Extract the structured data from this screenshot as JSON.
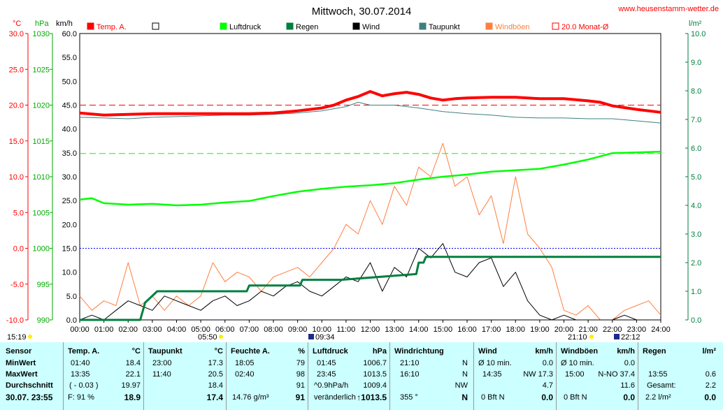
{
  "header": {
    "title": "Mittwoch, 30.07.2014",
    "site": "www.heusenstamm-wetter.de",
    "unit_left1": "°C",
    "unit_left2": "hPa",
    "unit_left3": "km/h",
    "unit_right": "l/m²"
  },
  "legend": [
    {
      "label": "Temp. A.",
      "color": "#ff0000",
      "filled": true
    },
    {
      "label": "",
      "color": "#000000",
      "filled": false
    },
    {
      "label": "Luftdruck",
      "color": "#00ff00",
      "filled": true
    },
    {
      "label": "Regen",
      "color": "#007f3f",
      "filled": true
    },
    {
      "label": "Wind",
      "color": "#000000",
      "filled": true
    },
    {
      "label": "Taupunkt",
      "color": "#3f7f7f",
      "filled": true
    },
    {
      "label": "Windböen",
      "color": "#ff7f3f",
      "filled": true
    },
    {
      "label": "20.0 Monat-Ø",
      "color": "#ff0000",
      "filled": false
    }
  ],
  "chart_data": {
    "type": "line",
    "x_ticks": [
      "00:00",
      "01:00",
      "02:00",
      "03:00",
      "04:00",
      "05:00",
      "06:00",
      "07:00",
      "08:00",
      "09:00",
      "10:00",
      "11:00",
      "12:00",
      "13:00",
      "14:00",
      "15:00",
      "16:00",
      "17:00",
      "18:00",
      "19:00",
      "20:00",
      "21:00",
      "22:00",
      "23:00",
      "24:00"
    ],
    "axis_temp": {
      "label": "°C",
      "ticks": [
        "30.0",
        "25.0",
        "20.0",
        "15.0",
        "10.0",
        "5.0",
        "0.0",
        "-5.0",
        "-10.0"
      ],
      "range": [
        -10,
        30
      ]
    },
    "axis_pressure": {
      "label": "hPa",
      "ticks": [
        "1030",
        "1025",
        "1020",
        "1015",
        "1010",
        "1005",
        "1000",
        "995",
        "990"
      ],
      "range": [
        990,
        1030
      ]
    },
    "axis_wind": {
      "label": "km/h",
      "ticks": [
        "60.0",
        "55.0",
        "50.0",
        "45.0",
        "40.0",
        "35.0",
        "30.0",
        "25.0",
        "20.0",
        "15.0",
        "10.0",
        "5.0",
        "0.0"
      ],
      "range": [
        0,
        60
      ]
    },
    "axis_rain": {
      "label": "l/m²",
      "ticks": [
        "10.0",
        "9.0",
        "8.0",
        "7.0",
        "6.0",
        "5.0",
        "4.0",
        "3.0",
        "2.0",
        "1.0",
        "0.0"
      ],
      "range": [
        0,
        10
      ]
    },
    "reference_lines": {
      "monthly_avg_temp": 20.0,
      "pressure_ref": 1013.25,
      "freezing": 0.0
    },
    "series": [
      {
        "name": "Temp. A.",
        "color": "#ff0000",
        "axis": "temp",
        "x": [
          0,
          1,
          2,
          3,
          4,
          5,
          6,
          7,
          8,
          9,
          10,
          10.5,
          11,
          11.5,
          12,
          12.5,
          13,
          13.5,
          14,
          14.5,
          15,
          15.5,
          16,
          17,
          18,
          19,
          20,
          21,
          21.5,
          22,
          23,
          24
        ],
        "values": [
          18.9,
          18.6,
          18.7,
          18.8,
          18.8,
          18.8,
          18.8,
          18.8,
          18.9,
          19.2,
          19.6,
          20.0,
          20.7,
          21.2,
          21.9,
          21.3,
          21.6,
          21.8,
          21.5,
          21.0,
          20.7,
          20.9,
          21.0,
          21.1,
          21.1,
          20.9,
          20.9,
          20.6,
          20.4,
          19.9,
          19.4,
          19.0
        ]
      },
      {
        "name": "Taupunkt",
        "color": "#3f7f7f",
        "axis": "temp",
        "x": [
          0,
          1,
          2,
          3,
          4,
          5,
          6,
          7,
          8,
          9,
          10,
          11,
          11.5,
          12,
          13,
          14,
          15,
          16,
          17,
          18,
          19,
          20,
          21,
          22,
          23,
          24
        ],
        "values": [
          18.3,
          18.2,
          18.1,
          18.3,
          18.4,
          18.5,
          18.6,
          18.6,
          18.7,
          18.9,
          19.2,
          19.8,
          20.4,
          20.0,
          20.0,
          19.6,
          19.1,
          18.8,
          18.6,
          18.3,
          18.2,
          18.2,
          18.1,
          18.1,
          17.8,
          17.5
        ]
      },
      {
        "name": "Luftdruck",
        "color": "#00ff00",
        "axis": "pressure",
        "x": [
          0,
          0.5,
          1,
          2,
          3,
          4,
          5,
          6,
          7,
          8,
          9,
          10,
          11,
          12,
          13,
          14,
          15,
          16,
          17,
          18,
          19,
          20,
          21,
          22,
          23,
          24
        ],
        "values": [
          1006.8,
          1007.0,
          1006.3,
          1006.1,
          1006.2,
          1006.0,
          1006.1,
          1006.4,
          1006.6,
          1007.3,
          1007.9,
          1008.3,
          1008.6,
          1008.8,
          1009.1,
          1009.6,
          1010.0,
          1010.3,
          1010.7,
          1010.9,
          1011.1,
          1011.7,
          1012.4,
          1013.3,
          1013.4,
          1013.5
        ]
      },
      {
        "name": "Regen",
        "color": "#007f3f",
        "axis": "rain",
        "x": [
          0,
          2.5,
          2.7,
          3.2,
          6.9,
          7.0,
          9.1,
          9.2,
          10.7,
          10.8,
          13.9,
          14.0,
          14.2,
          14.3,
          24
        ],
        "values": [
          0,
          0,
          0.6,
          1.0,
          1.0,
          1.2,
          1.2,
          1.4,
          1.4,
          1.4,
          1.6,
          2.0,
          2.0,
          2.2,
          2.2
        ]
      },
      {
        "name": "Wind",
        "color": "#000000",
        "axis": "wind",
        "x": [
          0,
          0.5,
          1,
          1.5,
          2,
          2.5,
          3,
          3.5,
          4,
          4.5,
          5,
          5.5,
          6,
          6.5,
          7,
          7.5,
          8,
          8.5,
          9,
          9.5,
          10,
          10.5,
          11,
          11.5,
          12,
          12.5,
          13,
          13.5,
          14,
          14.5,
          15,
          15.5,
          16,
          16.5,
          17,
          17.5,
          18,
          18.5,
          19,
          19.5,
          20,
          20.5,
          21,
          21.5,
          22,
          22.5,
          23,
          23.5,
          24
        ],
        "values": [
          0,
          1,
          0,
          2,
          4,
          3,
          2,
          5,
          4,
          3,
          2,
          4,
          5,
          3,
          4,
          6,
          5,
          7,
          8,
          6,
          5,
          7,
          9,
          8,
          12,
          6,
          11,
          9,
          15,
          13,
          16,
          10,
          9,
          12,
          13,
          7,
          10,
          4,
          1,
          0,
          1,
          0,
          0,
          0,
          0,
          1,
          0,
          0,
          0
        ]
      },
      {
        "name": "Windböen",
        "color": "#ff7f3f",
        "axis": "wind",
        "x": [
          0,
          0.5,
          1,
          1.5,
          2,
          2.5,
          3,
          3.5,
          4,
          4.5,
          5,
          5.5,
          6,
          6.5,
          7,
          7.5,
          8,
          8.5,
          9,
          9.5,
          10,
          10.5,
          11,
          11.5,
          12,
          12.5,
          13,
          13.5,
          14,
          14.5,
          15,
          15.5,
          16,
          16.5,
          17,
          17.5,
          18,
          18.5,
          19,
          19.5,
          20,
          20.5,
          21,
          21.5,
          22,
          22.5,
          23,
          23.5,
          24
        ],
        "values": [
          5,
          2,
          4,
          3,
          12,
          3,
          5,
          2,
          5,
          3,
          5,
          12,
          8,
          10,
          9,
          6,
          9,
          10,
          11,
          9,
          12,
          15,
          20,
          18,
          25,
          20,
          28,
          24,
          32,
          30,
          37,
          28,
          30,
          22,
          26,
          16,
          30,
          18,
          15,
          11,
          2,
          1,
          3,
          0,
          0,
          2,
          3,
          4,
          1
        ]
      }
    ]
  },
  "markers": {
    "left_time": "15:19",
    "sunrise": "05:50",
    "moon_rise": "09:34",
    "sunset": "21:10",
    "moon_set": "22:12"
  },
  "table": {
    "sensor": {
      "header": "Sensor",
      "rows": [
        "MinWert",
        "MaxWert",
        "Durchschnitt"
      ],
      "footer": "30.07. 23:55"
    },
    "temp": {
      "header": "Temp. A.",
      "unit": "°C",
      "min_time": "01:40",
      "min": "18.4",
      "max_time": "13:35",
      "max": "22.1",
      "avg_note": "( - 0.03 )",
      "avg": "19.97",
      "footer_left": "F: 91 %",
      "footer": "18.9"
    },
    "dew": {
      "header": "Taupunkt",
      "unit": "°C",
      "min_time": "23:00",
      "min": "17.3",
      "max_time": "11:40",
      "max": "20.5",
      "avg": "18.4",
      "footer": "17.4"
    },
    "hum": {
      "header": "Feuchte A.",
      "unit": "%",
      "min_time": "18:05",
      "min": "79",
      "max_time": "02:40",
      "max": "98",
      "avg": "91",
      "footer_left": "14.76 g/m³",
      "footer": "91"
    },
    "press": {
      "header": "Luftdruck",
      "unit": "hPa",
      "min_time": "01:45",
      "min": "1006.7",
      "max_time": "23:45",
      "max": "1013.5",
      "avg_note": "^0.9hPa/h",
      "avg": "1009.4",
      "footer_left": "veränderlich",
      "footer": "↑1013.5"
    },
    "dir": {
      "header": "Windrichtung",
      "min_time": "21:10",
      "min": "N",
      "max_time": "16:10",
      "max": "N",
      "avg": "NW",
      "footer_left": "355 °",
      "footer": "N"
    },
    "wind": {
      "header": "Wind",
      "unit": "km/h",
      "min_time": "Ø 10 min.",
      "min": "0.0",
      "max_time": "14:35",
      "max": "NW 17.3",
      "avg": "4.7",
      "footer_left": "0 Bft N",
      "footer": "0.0"
    },
    "gust": {
      "header": "Windböen",
      "unit": "km/h",
      "min_time": "Ø 10 min.",
      "min": "0.0",
      "max_time": "15:00",
      "max": "N-NO 37.4",
      "avg": "11.6",
      "footer_left": "0 Bft N",
      "footer": "0.0"
    },
    "rain": {
      "header": "Regen",
      "unit": "l/m²",
      "max_time": "13:55",
      "max": "0.6",
      "avg_label": "Gesamt:",
      "avg": "2.2",
      "footer_left": "2.2 l/m²",
      "footer": "0.0"
    }
  }
}
